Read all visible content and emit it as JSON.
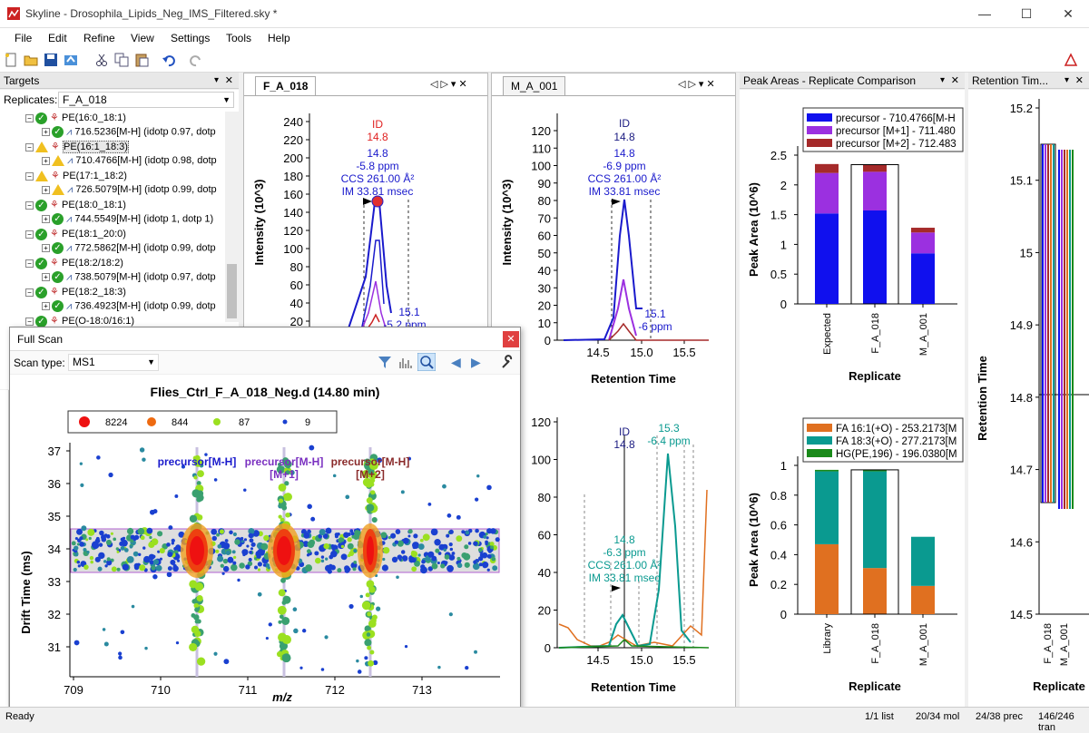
{
  "window": {
    "title": "Skyline - Drosophila_Lipids_Neg_IMS_Filtered.sky *",
    "min": "—",
    "max": "☐",
    "close": "✕"
  },
  "menu": [
    "File",
    "Edit",
    "Refine",
    "View",
    "Settings",
    "Tools",
    "Help"
  ],
  "targets": {
    "header": "Targets",
    "replicates_label": "Replicates:",
    "replicate": "F_A_018",
    "items": [
      {
        "label": "PE(16:0_18:1)",
        "level": 0,
        "status": "ok"
      },
      {
        "label": "716.5236[M-H] (idotp 0.97, dotp",
        "level": 1,
        "status": "ok"
      },
      {
        "label": "PE(16:1_18:3)",
        "level": 0,
        "status": "warn"
      },
      {
        "label": "710.4766[M-H] (idotp 0.98, dotp",
        "level": 1,
        "status": "warn"
      },
      {
        "label": "PE(17:1_18:2)",
        "level": 0,
        "status": "warn"
      },
      {
        "label": "726.5079[M-H] (idotp 0.99, dotp",
        "level": 1,
        "status": "warn"
      },
      {
        "label": "PE(18:0_18:1)",
        "level": 0,
        "status": "ok"
      },
      {
        "label": "744.5549[M-H] (idotp 1, dotp 1)",
        "level": 1,
        "status": "ok"
      },
      {
        "label": "PE(18:1_20:0)",
        "level": 0,
        "status": "ok"
      },
      {
        "label": "772.5862[M-H] (idotp 0.99, dotp",
        "level": 1,
        "status": "ok"
      },
      {
        "label": "PE(18:2/18:2)",
        "level": 0,
        "status": "ok"
      },
      {
        "label": "738.5079[M-H] (idotp 0.97, dotp",
        "level": 1,
        "status": "ok"
      },
      {
        "label": "PE(18:2_18:3)",
        "level": 0,
        "status": "ok"
      },
      {
        "label": "736.4923[M-H] (idotp 0.99, dotp",
        "level": 1,
        "status": "ok"
      },
      {
        "label": "PE(O-18:0/16:1)",
        "level": 0,
        "status": "ok"
      }
    ]
  },
  "chrom1": {
    "tab": "F_A_018",
    "ylabel": "Intensity (10^3)",
    "yticks": [
      "240",
      "220",
      "200",
      "180",
      "160",
      "140",
      "120",
      "100",
      "80",
      "60",
      "40",
      "20"
    ],
    "ann": {
      "id": "ID",
      "rt": "14.8",
      "rt2": "14.8",
      "ppm": "-5.8 ppm",
      "ccs": "CCS 261.00 Å²",
      "im": "IM 33.81 msec",
      "rt3": "15.1",
      "ppm3": "-5.2 ppm"
    }
  },
  "chrom2": {
    "tab": "M_A_001",
    "ylabel": "Intensity (10^3)",
    "xlabel": "Retention Time",
    "yticks": [
      "120",
      "110",
      "100",
      "90",
      "80",
      "70",
      "60",
      "50",
      "40",
      "30",
      "20",
      "10",
      "0"
    ],
    "xticks": [
      "14.5",
      "15.0",
      "15.5"
    ],
    "ann": {
      "id": "ID",
      "rt": "14.8",
      "rt2": "14.8",
      "ppm": "-6.9 ppm",
      "ccs": "CCS 261.00 Å²",
      "im": "IM 33.81 msec",
      "rt3": "15.1",
      "ppm3": "-6 ppm"
    }
  },
  "chrom3": {
    "xlabel": "Retention Time",
    "yticks": [
      "120",
      "100",
      "80",
      "60",
      "40",
      "20",
      "0"
    ],
    "xticks": [
      "14.5",
      "15.0",
      "15.5"
    ],
    "ann": {
      "id": "ID",
      "rt": "14.8",
      "rt2": "14.8",
      "ppm": "-6.3 ppm",
      "ccs": "CCS 261.00 Å²",
      "im": "IM 33.81 msec",
      "rt3": "15.3",
      "ppm3": "-6.4 ppm"
    }
  },
  "peakareas": {
    "header": "Peak Areas - Replicate Comparison",
    "chart_data": [
      {
        "type": "bar",
        "ylabel": "Peak Area (10^6)",
        "xlabel": "Replicate",
        "categories": [
          "Expected",
          "F_A_018",
          "M_A_001"
        ],
        "yticks": [
          "2.5",
          "2",
          "1.5",
          "1",
          "0.5",
          "0"
        ],
        "series": [
          {
            "name": "precursor - 710.4766[M-H",
            "color": "#1010ee",
            "values": [
              1.52,
              1.57,
              0.85
            ]
          },
          {
            "name": "precursor [M+1] - 711.480",
            "color": "#9b30e0",
            "values": [
              0.68,
              0.65,
              0.35
            ]
          },
          {
            "name": "precursor [M+2] - 712.483",
            "color": "#a52a2a",
            "values": [
              0.15,
              0.12,
              0.08
            ]
          }
        ]
      },
      {
        "type": "bar",
        "ylabel": "Peak Area (10^6)",
        "xlabel": "Replicate",
        "categories": [
          "Library",
          "F_A_018",
          "M_A_001"
        ],
        "yticks": [
          "1",
          "0.8",
          "0.6",
          "0.4",
          "0.2",
          "0"
        ],
        "series": [
          {
            "name": "FA 16:1(+O) - 253.2173[M",
            "color": "#e07020",
            "values": [
              0.47,
              0.31,
              0.19
            ]
          },
          {
            "name": "FA 18:3(+O) - 277.2173[M",
            "color": "#0a9a90",
            "values": [
              0.49,
              0.65,
              0.33
            ]
          },
          {
            "name": "HG(PE,196) - 196.0380[M",
            "color": "#1a8a1a",
            "values": [
              0.01,
              0.01,
              0.0
            ]
          }
        ]
      }
    ]
  },
  "rt": {
    "header": "Retention Tim...",
    "ylabel": "Retention Time",
    "xlabel": "Replicate",
    "yticks": [
      "15.2",
      "15.1",
      "15",
      "14.9",
      "14.8",
      "14.7",
      "14.6",
      "14.5"
    ],
    "cats": [
      "F_A_018",
      "M_A_001"
    ]
  },
  "fullscan": {
    "title": "Full Scan",
    "scantype_label": "Scan type:",
    "scantype": "MS1",
    "plot_title": "Flies_Ctrl_F_A_018_Neg.d  (14.80 min)",
    "legend": [
      "8224",
      "844",
      "87",
      "9"
    ],
    "ylabel": "Drift Time (ms)",
    "xlabel": "m/z",
    "yticks": [
      "37",
      "36",
      "35",
      "34",
      "33",
      "32",
      "31"
    ],
    "xticks": [
      "709",
      "710",
      "711",
      "712",
      "713"
    ],
    "peaks": [
      {
        "l1": "precursor[M-H]",
        "l2": "",
        "color": "#1a1acc"
      },
      {
        "l1": "precursor[M-H]",
        "l2": "[M+1]",
        "color": "#7a30c0"
      },
      {
        "l1": "precursor[M-H]",
        "l2": "[M+2]",
        "color": "#8a2a2a"
      }
    ]
  },
  "status": {
    "ready": "Ready",
    "list": "1/1 list",
    "mol": "20/34 mol",
    "prec": "24/38 prec",
    "tran": "146/246 tran"
  }
}
